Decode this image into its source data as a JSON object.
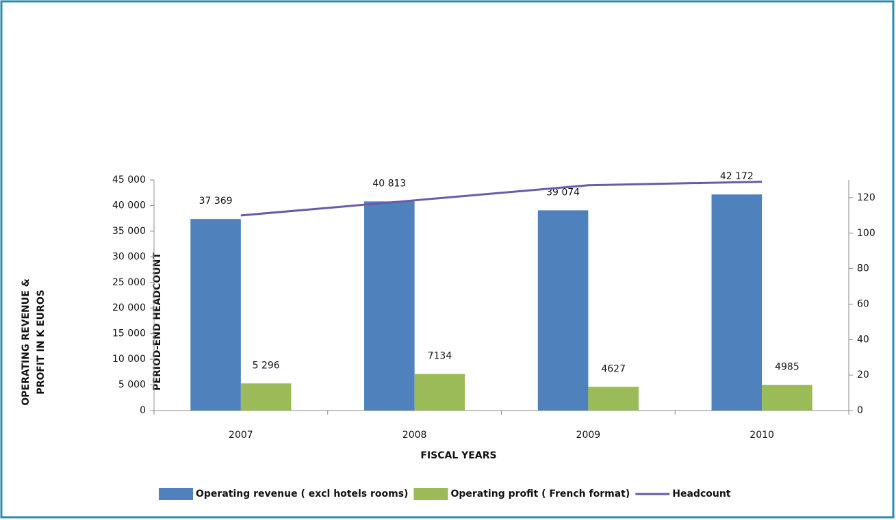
{
  "chart_data": {
    "type": "bar",
    "categories": [
      "2007",
      "2008",
      "2009",
      "2010"
    ],
    "series": [
      {
        "name": "Operating revenue ( excl hotels rooms)",
        "color": "#4f81bd",
        "values": [
          37369,
          40813,
          39074,
          42172
        ],
        "value_labels": [
          "37 369",
          "40 813",
          "39 074",
          "42 172"
        ]
      },
      {
        "name": "Operating profit ( French format)",
        "color": "#9bbb59",
        "values": [
          5296,
          7134,
          4627,
          4985
        ],
        "value_labels": [
          "5 296",
          "7134",
          "4627",
          "4985"
        ]
      },
      {
        "name": "Headcount",
        "color": "#6a5aa8",
        "type": "line",
        "axis": "y2",
        "values": [
          110,
          118.5,
          127,
          129
        ]
      }
    ],
    "xlabel": "FISCAL YEARS",
    "ylabel": [
      "OPERATING REVENUE &",
      "PROFIT IN K EUROS"
    ],
    "y2label": "PERIOD-END HEADCOUNT",
    "ylim": [
      0,
      45000
    ],
    "yticks": [
      0,
      {
        "value": 5000,
        "label": "5 000"
      },
      {
        "value": 10000,
        "label": "10 000"
      },
      {
        "value": 15000,
        "label": "15 000"
      },
      {
        "value": 20000,
        "label": "20 000"
      },
      {
        "value": 25000,
        "label": "25 000"
      },
      {
        "value": 30000,
        "label": "30 000"
      },
      {
        "value": 35000,
        "label": "35 000"
      },
      {
        "value": 40000,
        "label": "40 000"
      },
      {
        "value": 45000,
        "label": "45 000"
      }
    ],
    "y2lim": [
      0,
      130
    ],
    "y2ticks": [
      0,
      20,
      40,
      60,
      80,
      100,
      120
    ],
    "legend": "bottom"
  }
}
